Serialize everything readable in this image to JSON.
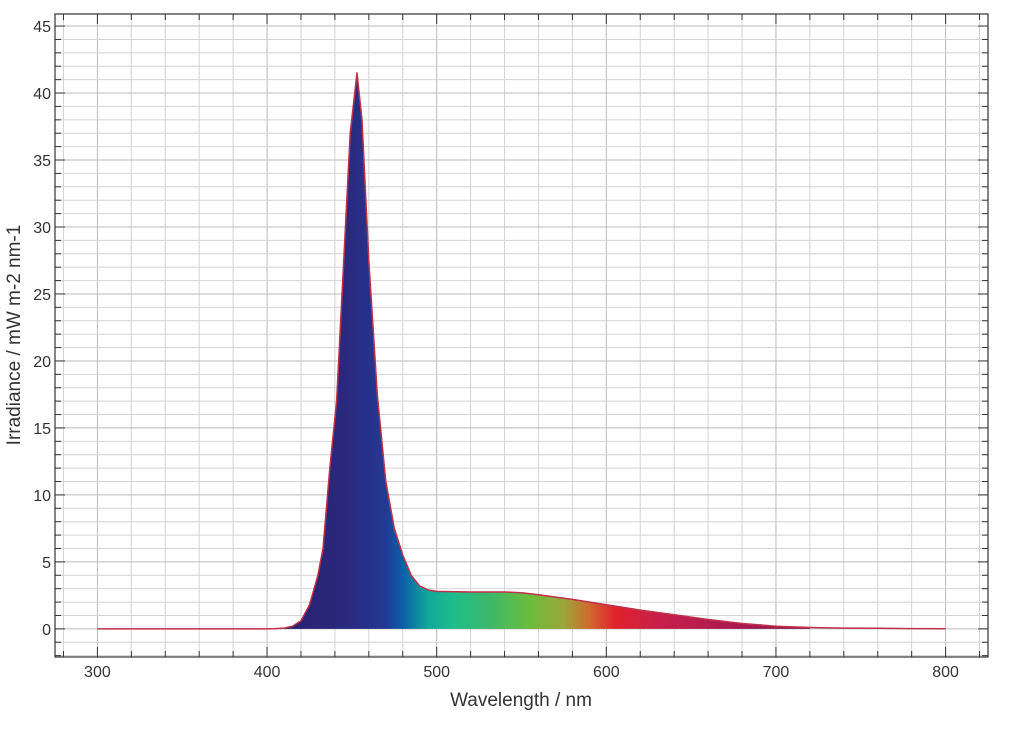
{
  "chart_data": {
    "type": "area",
    "title": "",
    "xlabel": "Wavelength / nm",
    "ylabel": "Irradiance / mW m-2 nm-1",
    "xlim": [
      275,
      825
    ],
    "ylim": [
      -2.1,
      45.9
    ],
    "xticks": [
      300,
      400,
      500,
      600,
      700,
      800
    ],
    "yticks": [
      0,
      5,
      10,
      15,
      20,
      25,
      30,
      35,
      40,
      45
    ],
    "grid": true,
    "fill": "visible-spectrum gradient under curve from 410 to 720 nm",
    "line_color": "#c0304a",
    "x": [
      300,
      350,
      400,
      405,
      410,
      415,
      420,
      425,
      430,
      433,
      437,
      441,
      445,
      449,
      453,
      456,
      460,
      465,
      470,
      475,
      480,
      485,
      490,
      495,
      500,
      520,
      540,
      550,
      560,
      580,
      600,
      620,
      640,
      660,
      680,
      700,
      720,
      740,
      760,
      780,
      800
    ],
    "y": [
      0,
      0,
      0,
      0.02,
      0.06,
      0.2,
      0.6,
      1.8,
      4.0,
      6,
      12,
      17,
      27,
      37,
      41.5,
      38,
      27.5,
      17.5,
      11,
      7.5,
      5.5,
      4,
      3.2,
      2.9,
      2.8,
      2.75,
      2.75,
      2.7,
      2.55,
      2.2,
      1.8,
      1.4,
      1.05,
      0.7,
      0.4,
      0.2,
      0.1,
      0.06,
      0.04,
      0.02,
      0.01
    ]
  }
}
